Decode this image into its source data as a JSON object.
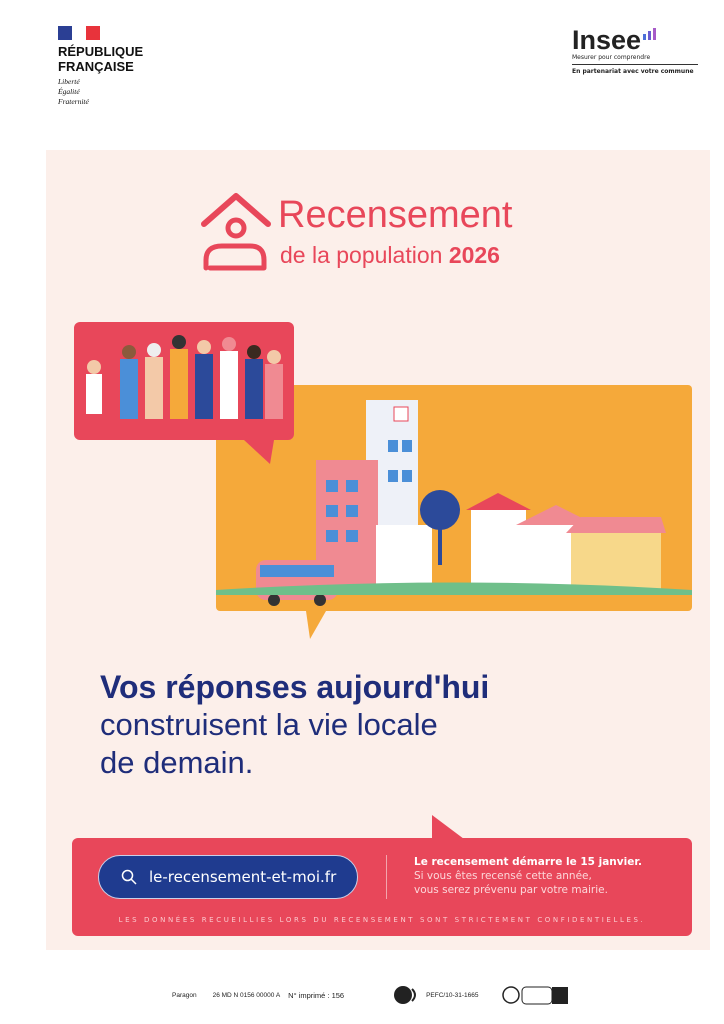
{
  "header": {
    "republique": {
      "line1": "RÉPUBLIQUE",
      "line2": "FRANÇAISE",
      "devise": [
        "Liberté",
        "Égalité",
        "Fraternité"
      ],
      "flag_colors": [
        "#2b3f94",
        "#ffffff",
        "#e8333b"
      ]
    },
    "insee": {
      "logo": "Insee",
      "tagline": "Mesurer pour comprendre",
      "partner": "En partenariat avec votre commune"
    }
  },
  "poster": {
    "title": "Recensement",
    "subtitle": "de la population",
    "year": "2026",
    "headline_bold": "Vos réponses aujourd'hui",
    "headline_line2": "construisent la vie locale",
    "headline_line3": "de demain.",
    "colors": {
      "red": "#e8475a",
      "orange": "#f5a93a",
      "navy": "#1f2d7a",
      "background": "#fcefea"
    }
  },
  "banner": {
    "search_icon": "search-icon",
    "url": "le-recensement-et-moi.fr",
    "info_bold": "Le recensement démarre le 15 janvier.",
    "info_line2": "Si vous êtes recensé cette année,",
    "info_line3": "vous serez prévenu par votre mairie.",
    "confidential": "LES DONNÉES RECUEILLIES LORS DU RECENSEMENT SONT STRICTEMENT CONFIDENTIELLES."
  },
  "footer": {
    "printer": "Paragon",
    "code": "26 MD N 0156 00000 A",
    "printed": "N° imprimé : 156",
    "pefc": "PEFC/10-31-1665"
  }
}
